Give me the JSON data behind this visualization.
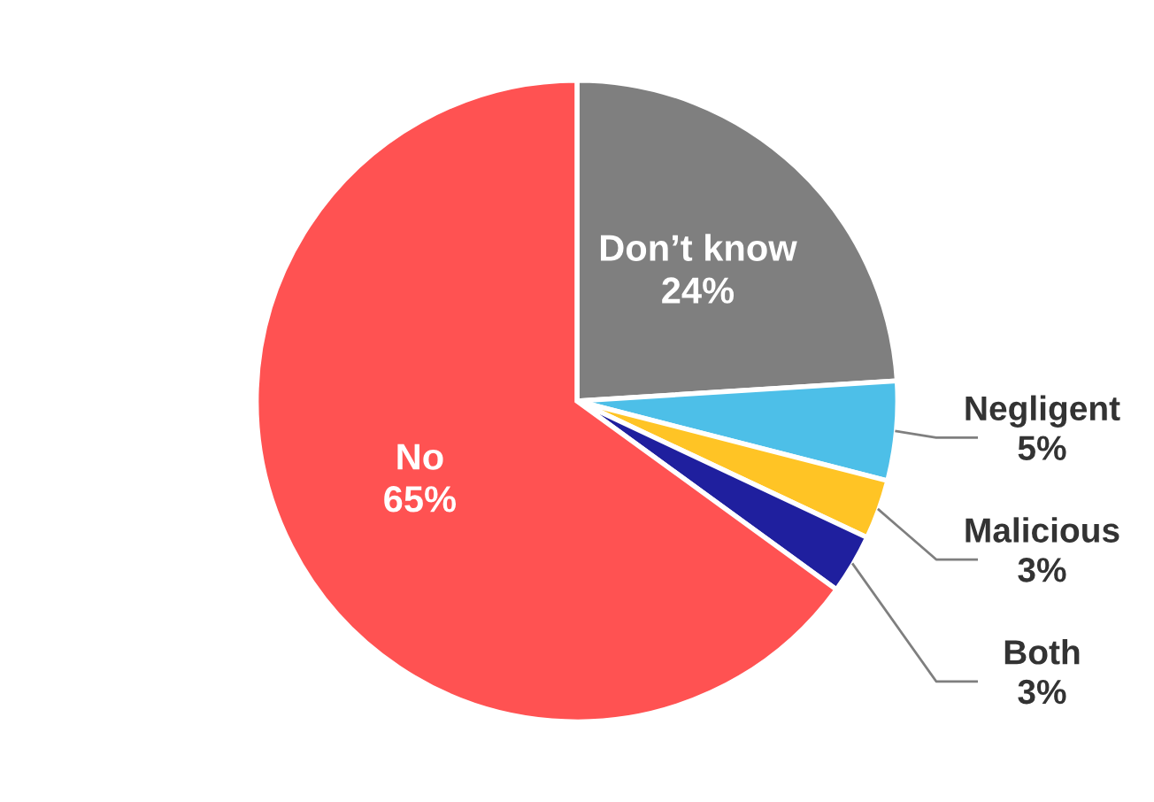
{
  "chart_data": {
    "type": "pie",
    "categories": [
      "Don’t know",
      "Negligent",
      "Malicious",
      "Both",
      "No"
    ],
    "values": [
      24,
      5,
      3,
      3,
      65
    ],
    "colors": [
      "#7f7f7f",
      "#4dbfe8",
      "#ffc425",
      "#1f1f9e",
      "#ff5252"
    ],
    "value_labels": [
      "24%",
      "5%",
      "3%",
      "3%",
      "65%"
    ],
    "legend": false
  }
}
